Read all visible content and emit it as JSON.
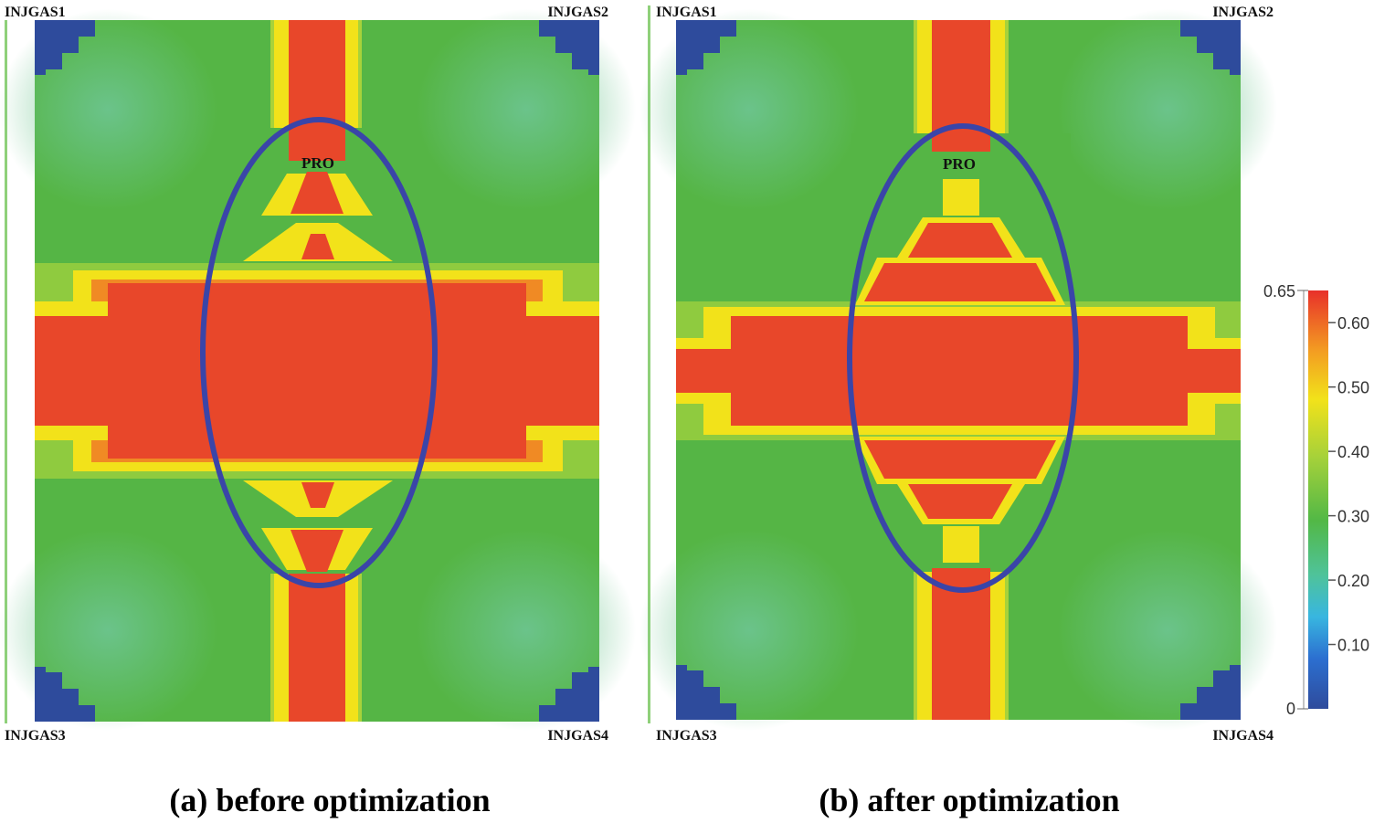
{
  "panels": [
    {
      "id": "a",
      "caption": "(a) before optimization",
      "producer_label": "PRO",
      "well_labels": [
        "INJGAS1",
        "INJGAS2",
        "INJGAS3",
        "INJGAS4"
      ]
    },
    {
      "id": "b",
      "caption": "(b) after optimization",
      "producer_label": "PRO",
      "well_labels": [
        "INJGAS1",
        "INJGAS2",
        "INJGAS3",
        "INJGAS4"
      ]
    }
  ],
  "colorbar": {
    "min_label": "0",
    "max_label": "0.65",
    "ticks": [
      "0.60",
      "0.50",
      "0.40",
      "0.30",
      "0.20",
      "0.10"
    ],
    "tick_values": [
      0.6,
      0.5,
      0.4,
      0.3,
      0.2,
      0.1
    ],
    "min": 0,
    "max": 0.65,
    "colors": {
      "red": "#e8472a",
      "orange": "#f08a24",
      "yellow": "#f2e21a",
      "yellowgreen": "#b7d72e",
      "green": "#5eb944",
      "seagreen": "#5dbe78",
      "cyan": "#3cc1d8",
      "lightblue": "#2c9fe3",
      "darkblue": "#2e4b9c"
    }
  },
  "ellipse_color": "#3a45a8"
}
